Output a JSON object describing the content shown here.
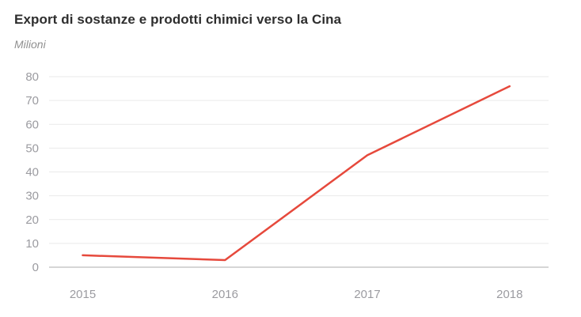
{
  "header": {
    "title": "Export di sostanze e prodotti chimici verso la Cina",
    "subtitle": "Milioni"
  },
  "colors": {
    "line": "#e6493c",
    "gridline": "#e9e9e9",
    "axis_line": "#c8c8c8",
    "tick_label": "#9b9ba0",
    "title": "#2e2e2e",
    "subtitle": "#909090",
    "background": "#ffffff"
  },
  "chart_data": {
    "type": "line",
    "title": "Export di sostanze e prodotti chimici verso la Cina",
    "subtitle": "Milioni",
    "unit_label": "Milioni",
    "x": [
      "2015",
      "2016",
      "2017",
      "2018"
    ],
    "series": [
      {
        "values": [
          5,
          3,
          47,
          76
        ]
      }
    ],
    "ylim": [
      0,
      80
    ],
    "yticks": [
      0,
      10,
      20,
      30,
      40,
      50,
      60,
      70,
      80
    ],
    "grid": "horizontal",
    "legend_position": "none"
  }
}
